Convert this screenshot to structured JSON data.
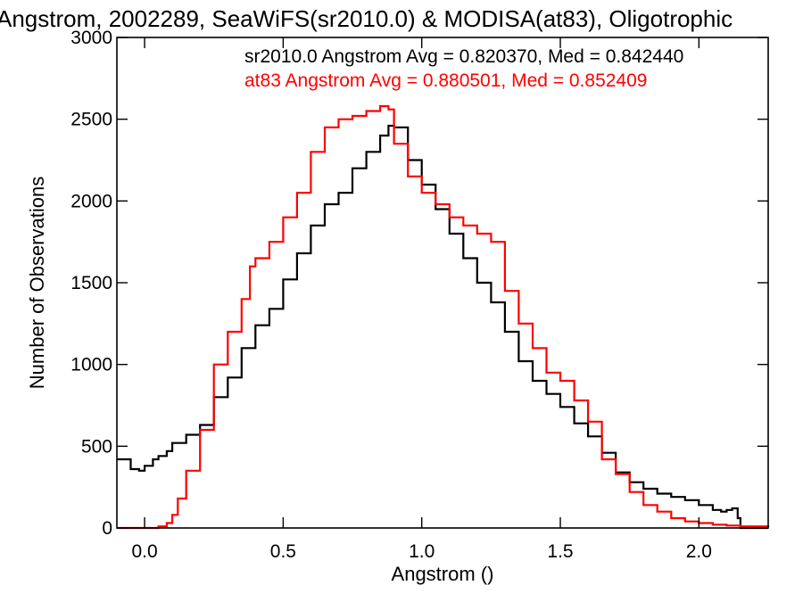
{
  "chart_data": {
    "type": "line",
    "title": "Angstrom, 2002289, SeaWiFS(sr2010.0) & MODISA(at83), Oligotrophic",
    "xlabel": "Angstrom ()",
    "ylabel": "Number of Observations",
    "xlim": [
      -0.1,
      2.25
    ],
    "ylim": [
      0,
      3000
    ],
    "xticks": [
      0.0,
      0.5,
      1.0,
      1.5,
      2.0
    ],
    "xtick_labels": [
      "0.0",
      "0.5",
      "1.0",
      "1.5",
      "2.0"
    ],
    "yticks": [
      0,
      500,
      1000,
      1500,
      2000,
      2500,
      3000
    ],
    "ytick_labels": [
      "0",
      "500",
      "1000",
      "1500",
      "2000",
      "2500",
      "3000"
    ],
    "grid": false,
    "legend_placement": "top-right",
    "series": [
      {
        "name": "sr2010.0",
        "legend_text": "sr2010.0 Angstrom Avg = 0.820370, Med = 0.842440",
        "color": "#000000",
        "points": [
          [
            -0.1,
            420
          ],
          [
            -0.05,
            360
          ],
          [
            -0.02,
            350
          ],
          [
            0.0,
            380
          ],
          [
            0.03,
            420
          ],
          [
            0.05,
            440
          ],
          [
            0.08,
            470
          ],
          [
            0.1,
            520
          ],
          [
            0.15,
            570
          ],
          [
            0.2,
            630
          ],
          [
            0.25,
            800
          ],
          [
            0.3,
            920
          ],
          [
            0.35,
            1100
          ],
          [
            0.4,
            1240
          ],
          [
            0.45,
            1340
          ],
          [
            0.5,
            1520
          ],
          [
            0.55,
            1680
          ],
          [
            0.6,
            1850
          ],
          [
            0.65,
            1980
          ],
          [
            0.7,
            2050
          ],
          [
            0.75,
            2200
          ],
          [
            0.8,
            2300
          ],
          [
            0.85,
            2400
          ],
          [
            0.88,
            2460
          ],
          [
            0.9,
            2450
          ],
          [
            0.95,
            2250
          ],
          [
            1.0,
            2100
          ],
          [
            1.05,
            1950
          ],
          [
            1.1,
            1800
          ],
          [
            1.15,
            1650
          ],
          [
            1.2,
            1500
          ],
          [
            1.25,
            1380
          ],
          [
            1.3,
            1200
          ],
          [
            1.35,
            1020
          ],
          [
            1.4,
            900
          ],
          [
            1.45,
            820
          ],
          [
            1.5,
            740
          ],
          [
            1.55,
            640
          ],
          [
            1.6,
            560
          ],
          [
            1.65,
            460
          ],
          [
            1.7,
            340
          ],
          [
            1.75,
            280
          ],
          [
            1.8,
            240
          ],
          [
            1.85,
            210
          ],
          [
            1.9,
            190
          ],
          [
            1.95,
            170
          ],
          [
            2.0,
            140
          ],
          [
            2.05,
            110
          ],
          [
            2.08,
            100
          ],
          [
            2.1,
            110
          ],
          [
            2.12,
            120
          ],
          [
            2.14,
            60
          ],
          [
            2.15,
            0
          ],
          [
            2.25,
            0
          ]
        ]
      },
      {
        "name": "at83",
        "legend_text": "at83 Angstrom Avg = 0.880501, Med = 0.852409",
        "color": "#ff0000",
        "points": [
          [
            -0.1,
            0
          ],
          [
            0.0,
            0
          ],
          [
            0.05,
            10
          ],
          [
            0.08,
            30
          ],
          [
            0.1,
            80
          ],
          [
            0.12,
            180
          ],
          [
            0.15,
            350
          ],
          [
            0.2,
            600
          ],
          [
            0.25,
            1000
          ],
          [
            0.3,
            1200
          ],
          [
            0.35,
            1400
          ],
          [
            0.38,
            1600
          ],
          [
            0.4,
            1650
          ],
          [
            0.45,
            1750
          ],
          [
            0.5,
            1900
          ],
          [
            0.55,
            2050
          ],
          [
            0.6,
            2300
          ],
          [
            0.65,
            2450
          ],
          [
            0.7,
            2500
          ],
          [
            0.75,
            2520
          ],
          [
            0.8,
            2550
          ],
          [
            0.85,
            2580
          ],
          [
            0.88,
            2560
          ],
          [
            0.9,
            2350
          ],
          [
            0.95,
            2150
          ],
          [
            1.0,
            2050
          ],
          [
            1.05,
            1980
          ],
          [
            1.1,
            1900
          ],
          [
            1.15,
            1850
          ],
          [
            1.2,
            1800
          ],
          [
            1.25,
            1750
          ],
          [
            1.3,
            1450
          ],
          [
            1.35,
            1250
          ],
          [
            1.4,
            1100
          ],
          [
            1.45,
            950
          ],
          [
            1.5,
            900
          ],
          [
            1.55,
            780
          ],
          [
            1.6,
            650
          ],
          [
            1.65,
            420
          ],
          [
            1.7,
            330
          ],
          [
            1.75,
            220
          ],
          [
            1.8,
            140
          ],
          [
            1.85,
            100
          ],
          [
            1.9,
            60
          ],
          [
            1.95,
            40
          ],
          [
            2.0,
            30
          ],
          [
            2.05,
            20
          ],
          [
            2.1,
            15
          ],
          [
            2.15,
            10
          ],
          [
            2.25,
            5
          ]
        ]
      }
    ]
  }
}
